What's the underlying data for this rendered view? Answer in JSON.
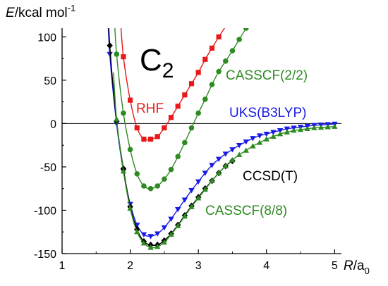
{
  "chart_data": {
    "type": "line",
    "molecule": {
      "base": "C",
      "sub": "2"
    },
    "y_axis": {
      "var": "E",
      "unit_text": "/kcal mol",
      "unit_sup": "-1"
    },
    "x_axis": {
      "var": "R",
      "unit_text": "/a",
      "unit_sub": "0"
    },
    "xlim": [
      1,
      5.1
    ],
    "ylim": [
      -150,
      110
    ],
    "x_ticks": [
      "1",
      "2",
      "3",
      "4",
      "5"
    ],
    "y_ticks": [
      "100",
      "50",
      "0",
      "-50",
      "-100",
      "-150"
    ],
    "zero_line": 0,
    "series": [
      {
        "name": "RHF",
        "color": "#e8191a",
        "marker": "square",
        "x": [
          1.9,
          2.0,
          2.1,
          2.2,
          2.3,
          2.4,
          2.5,
          2.6,
          2.7,
          2.8,
          2.9,
          3.0,
          3.1,
          3.2,
          3.3,
          3.4
        ],
        "y": [
          77,
          27,
          -5,
          -18,
          -18,
          -15,
          -5,
          7,
          20,
          33,
          46,
          59,
          74,
          87,
          100,
          112
        ]
      },
      {
        "name": "CASSCF(2/2)",
        "color": "#2e8b22",
        "marker": "circle",
        "x": [
          1.8,
          1.9,
          2.0,
          2.1,
          2.2,
          2.3,
          2.4,
          2.5,
          2.6,
          2.7,
          2.8,
          2.9,
          3.0,
          3.1,
          3.2,
          3.3,
          3.4,
          3.5,
          3.6,
          3.7
        ],
        "y": [
          80,
          12,
          -30,
          -58,
          -72,
          -75,
          -72,
          -64,
          -53,
          -38,
          -22,
          -5,
          12,
          28,
          45,
          60,
          72,
          84,
          97,
          110
        ]
      },
      {
        "name": "UKS(B3LYP)",
        "color": "#1a1ae6",
        "marker": "triangle-down",
        "x": [
          1.7,
          1.8,
          1.9,
          2.0,
          2.1,
          2.2,
          2.3,
          2.4,
          2.5,
          2.6,
          2.7,
          2.8,
          2.9,
          3.0,
          3.1,
          3.2,
          3.3,
          3.4,
          3.5,
          3.6,
          3.7,
          3.8,
          3.9,
          4.0,
          4.1,
          4.2,
          4.3,
          4.4,
          4.5,
          4.6,
          4.7,
          4.8,
          4.9,
          5.0
        ],
        "y": [
          80,
          0,
          -55,
          -93,
          -117,
          -128,
          -130,
          -127,
          -120,
          -110,
          -99,
          -88,
          -77,
          -67,
          -57,
          -48,
          -41,
          -35,
          -30,
          -25,
          -21,
          -17,
          -14,
          -12,
          -10,
          -8,
          -6,
          -5,
          -4,
          -3,
          -2,
          -1.5,
          -1,
          -0.5
        ]
      },
      {
        "name": "CCSD(T)",
        "color": "#000000",
        "marker": "diamond",
        "x": [
          1.7,
          1.8,
          1.9,
          2.0,
          2.1,
          2.2,
          2.3,
          2.4,
          2.5,
          2.6,
          2.7,
          2.8,
          2.9,
          3.0,
          3.1,
          3.2,
          3.3,
          3.4,
          3.5
        ],
        "y": [
          90,
          3,
          -52,
          -96,
          -122,
          -136,
          -140,
          -140,
          -135,
          -127,
          -117,
          -106,
          -95,
          -85,
          -75,
          -66,
          -57,
          -49,
          -43
        ]
      },
      {
        "name": "CASSCF(8/8)",
        "color": "#2e8b22",
        "marker": "triangle-up",
        "x": [
          1.8,
          1.9,
          2.0,
          2.1,
          2.2,
          2.3,
          2.4,
          2.5,
          2.6,
          2.7,
          2.8,
          2.9,
          3.0,
          3.1,
          3.2,
          3.3,
          3.4,
          3.5,
          3.6,
          3.7,
          3.8,
          3.9,
          4.0,
          4.1,
          4.2,
          4.3,
          4.4,
          4.5,
          4.6,
          4.7,
          4.8,
          4.9,
          5.0
        ],
        "y": [
          5,
          -55,
          -98,
          -125,
          -138,
          -143,
          -142,
          -137,
          -128,
          -118,
          -107,
          -96,
          -86,
          -76,
          -66,
          -57,
          -49,
          -42,
          -36,
          -31,
          -26,
          -22,
          -18,
          -15,
          -12,
          -10,
          -8,
          -7,
          -6,
          -5,
          -4.5,
          -4,
          -3.5
        ]
      }
    ]
  }
}
